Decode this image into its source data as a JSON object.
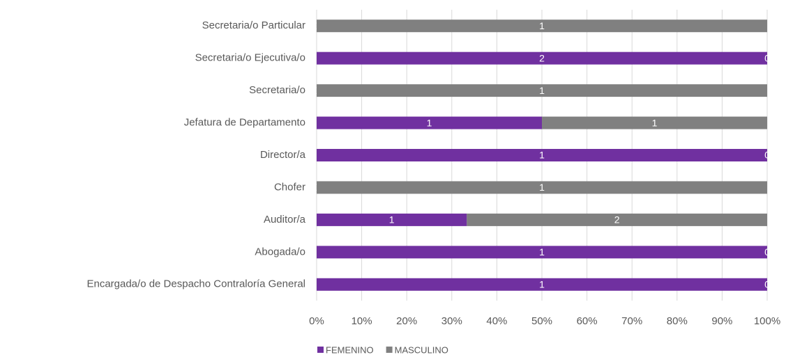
{
  "chart_data": {
    "type": "bar",
    "orientation": "horizontal",
    "stacking": "percent",
    "categories": [
      "Secretaria/o Particular",
      "Secretaria/o Ejecutiva/o",
      "Secretaria/o",
      "Jefatura de Departamento",
      "Director/a",
      "Chofer",
      "Auditor/a",
      "Abogada/o",
      "Encargada/o de Despacho Contraloría General"
    ],
    "series": [
      {
        "name": "FEMENINO",
        "color": "#7030a0",
        "values": [
          0,
          2,
          0,
          1,
          1,
          0,
          1,
          1,
          1
        ]
      },
      {
        "name": "MASCULINO",
        "color": "#808080",
        "values": [
          1,
          0,
          1,
          1,
          0,
          1,
          2,
          0,
          0
        ]
      }
    ],
    "xlim": [
      0,
      100
    ],
    "xticks": [
      {
        "value": 0,
        "label": "0%"
      },
      {
        "value": 10,
        "label": "10%"
      },
      {
        "value": 20,
        "label": "20%"
      },
      {
        "value": 30,
        "label": "30%"
      },
      {
        "value": 40,
        "label": "40%"
      },
      {
        "value": 50,
        "label": "50%"
      },
      {
        "value": 60,
        "label": "60%"
      },
      {
        "value": 70,
        "label": "70%"
      },
      {
        "value": 80,
        "label": "80%"
      },
      {
        "value": 90,
        "label": "90%"
      },
      {
        "value": 100,
        "label": "100%"
      }
    ],
    "grid": true,
    "legend": "bottom"
  }
}
